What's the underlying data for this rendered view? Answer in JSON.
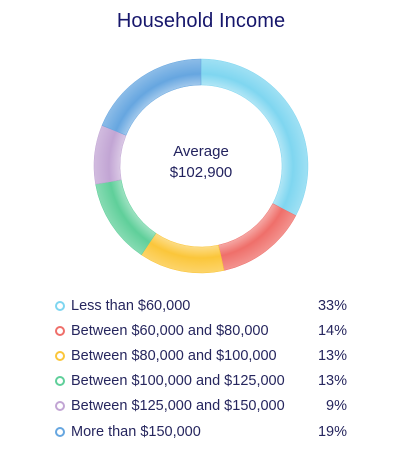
{
  "chart_data": {
    "type": "pie",
    "variant": "donut",
    "title": "Household Income",
    "center_label": "Average",
    "center_value": "$102,900",
    "categories": [
      "Less than $60,000",
      "Between $60,000 and $80,000",
      "Between $80,000 and $100,000",
      "Between $100,000 and $125,000",
      "Between $125,000 and $150,000",
      "More than $150,000"
    ],
    "values": [
      33,
      14,
      13,
      13,
      9,
      19
    ],
    "value_labels": [
      "33%",
      "14%",
      "13%",
      "13%",
      "9%",
      "19%"
    ],
    "colors": [
      "#7fd6f0",
      "#ef6f6a",
      "#fbc63a",
      "#5fcf9a",
      "#c2a5d4",
      "#66a6e0"
    ],
    "legend_position": "bottom"
  }
}
